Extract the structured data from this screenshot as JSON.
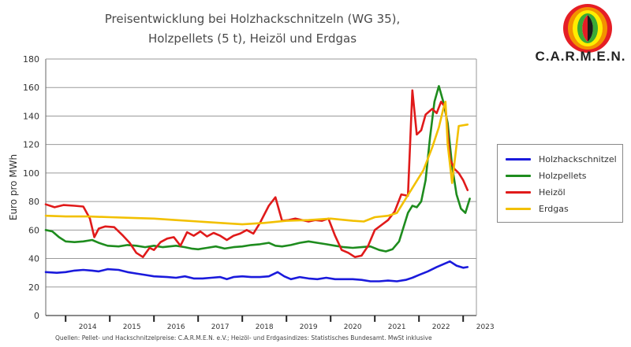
{
  "title_lines": [
    "Preisentwicklung bei Holzhackschnitzeln (WG 35),",
    "Holzpellets (5 t), Heizöl und Erdgas"
  ],
  "logo": {
    "text": "C.A.R.M.E.N."
  },
  "source_note": "Quellen: Pellet- und Hackschnitzelpreise: C.A.R.M.E.N. e.V.; Heizöl- und Erdgasindizes: Statistisches Bundesamt. MwSt inklusive",
  "chart_data": {
    "type": "line",
    "title": "Preisentwicklung bei Holzhackschnitzeln (WG 35), Holzpellets (5 t), Heizöl und Erdgas",
    "xlabel": "",
    "ylabel": "Euro pro MWh",
    "x_range": [
      2013.55,
      2023.3
    ],
    "ylim": [
      0,
      180
    ],
    "y_ticks": [
      0,
      20,
      40,
      60,
      80,
      100,
      120,
      140,
      160,
      180
    ],
    "x_tick_labels": [
      "2014",
      "2015",
      "2016",
      "2017",
      "2018",
      "2019",
      "2020",
      "2021",
      "2022",
      "2023"
    ],
    "grid": true,
    "legend_position": "right",
    "series": [
      {
        "name": "Holzhackschnitzel",
        "color": "#1a1adc",
        "x": [
          2013.55,
          2013.8,
          2014.0,
          2014.2,
          2014.4,
          2014.6,
          2014.75,
          2014.95,
          2015.2,
          2015.4,
          2015.6,
          2015.8,
          2016.0,
          2016.3,
          2016.5,
          2016.7,
          2016.9,
          2017.1,
          2017.3,
          2017.5,
          2017.65,
          2017.8,
          2018.0,
          2018.2,
          2018.4,
          2018.6,
          2018.8,
          2018.95,
          2019.1,
          2019.3,
          2019.5,
          2019.7,
          2019.9,
          2020.1,
          2020.3,
          2020.5,
          2020.7,
          2020.9,
          2021.1,
          2021.3,
          2021.5,
          2021.7,
          2021.85,
          2022.0,
          2022.2,
          2022.4,
          2022.55,
          2022.7,
          2022.85,
          2023.0,
          2023.1
        ],
        "y": [
          30.5,
          30,
          30.5,
          31.5,
          32,
          31.5,
          31,
          32.5,
          32,
          30.5,
          29.5,
          28.5,
          27.5,
          27,
          26.5,
          27.5,
          26,
          26,
          26.5,
          27,
          25.5,
          27,
          27.5,
          27,
          27,
          27.5,
          30.5,
          27.5,
          25.5,
          27,
          26,
          25.5,
          26.5,
          25.5,
          25.5,
          25.5,
          25,
          24,
          24,
          24.5,
          24,
          25,
          26.5,
          28.5,
          31,
          34,
          36,
          38,
          35,
          33.5,
          34
        ]
      },
      {
        "name": "Holzpellets",
        "color": "#1e8c1e",
        "x": [
          2013.55,
          2013.7,
          2013.85,
          2014.0,
          2014.2,
          2014.4,
          2014.6,
          2014.75,
          2014.95,
          2015.2,
          2015.4,
          2015.6,
          2015.8,
          2016.0,
          2016.2,
          2016.5,
          2016.7,
          2016.85,
          2017.0,
          2017.2,
          2017.4,
          2017.6,
          2017.8,
          2018.0,
          2018.2,
          2018.4,
          2018.6,
          2018.75,
          2018.9,
          2019.1,
          2019.3,
          2019.5,
          2019.7,
          2019.9,
          2020.1,
          2020.3,
          2020.5,
          2020.7,
          2020.9,
          2021.1,
          2021.25,
          2021.4,
          2021.55,
          2021.65,
          2021.75,
          2021.85,
          2021.95,
          2022.05,
          2022.15,
          2022.25,
          2022.35,
          2022.45,
          2022.55,
          2022.65,
          2022.75,
          2022.85,
          2022.95,
          2023.05,
          2023.15
        ],
        "y": [
          60,
          59,
          55,
          52,
          51.5,
          52,
          53,
          51,
          49,
          48.5,
          49.5,
          49,
          48,
          49,
          48,
          49,
          48,
          47,
          46.5,
          47.5,
          48.5,
          47,
          48,
          48.5,
          49.5,
          50,
          51,
          49,
          48.5,
          49.5,
          51,
          52,
          51,
          50,
          49,
          48,
          47.5,
          48,
          48.5,
          46,
          45,
          46.5,
          52,
          62,
          72,
          77,
          76,
          80,
          95,
          125,
          150,
          161,
          150,
          135,
          105,
          85,
          75,
          72,
          82
        ]
      },
      {
        "name": "Heizöl",
        "color": "#e01a1a",
        "x": [
          2013.55,
          2013.75,
          2013.95,
          2014.2,
          2014.4,
          2014.55,
          2014.65,
          2014.75,
          2014.9,
          2015.1,
          2015.3,
          2015.45,
          2015.6,
          2015.75,
          2015.9,
          2016.0,
          2016.15,
          2016.3,
          2016.45,
          2016.6,
          2016.75,
          2016.9,
          2017.05,
          2017.2,
          2017.35,
          2017.5,
          2017.65,
          2017.8,
          2017.95,
          2018.1,
          2018.25,
          2018.4,
          2018.5,
          2018.6,
          2018.75,
          2018.9,
          2019.05,
          2019.2,
          2019.35,
          2019.5,
          2019.65,
          2019.8,
          2019.95,
          2020.1,
          2020.25,
          2020.4,
          2020.55,
          2020.7,
          2020.85,
          2021.0,
          2021.15,
          2021.3,
          2021.45,
          2021.6,
          2021.75,
          2021.85,
          2021.95,
          2022.05,
          2022.15,
          2022.3,
          2022.4,
          2022.5,
          2022.6,
          2022.7,
          2022.8,
          2022.9,
          2023.0,
          2023.1
        ],
        "y": [
          78,
          76,
          77.5,
          77,
          76.5,
          68,
          55,
          61,
          62.5,
          62,
          56,
          51,
          44,
          41,
          47.5,
          46,
          51.5,
          54,
          55,
          49,
          58.5,
          56,
          59,
          55.5,
          58,
          56,
          53,
          56,
          57.5,
          60,
          57.5,
          65,
          71,
          77,
          83,
          66.5,
          67,
          68,
          67,
          66,
          67,
          66.5,
          68,
          56,
          46,
          44,
          41,
          42,
          49,
          60,
          63.5,
          67,
          73,
          85,
          84,
          158,
          127,
          130,
          141,
          145,
          142,
          150,
          146,
          110,
          103,
          100,
          95,
          88
        ]
      },
      {
        "name": "Erdgas",
        "color": "#f2c000",
        "x": [
          2013.55,
          2014.0,
          2014.5,
          2015.0,
          2015.5,
          2016.0,
          2016.5,
          2017.0,
          2017.5,
          2018.0,
          2018.5,
          2019.0,
          2019.5,
          2020.0,
          2020.5,
          2020.75,
          2021.0,
          2021.3,
          2021.5,
          2021.7,
          2021.9,
          2022.1,
          2022.3,
          2022.45,
          2022.55,
          2022.6,
          2022.65,
          2022.75,
          2022.9,
          2023.1
        ],
        "y": [
          70,
          69.5,
          69.5,
          69,
          68.5,
          68,
          67,
          66,
          65,
          64,
          65,
          66.5,
          67,
          68,
          66.5,
          66,
          69,
          70,
          72,
          82,
          92,
          102,
          118,
          132,
          145,
          150,
          120,
          93,
          133,
          134
        ]
      }
    ]
  }
}
